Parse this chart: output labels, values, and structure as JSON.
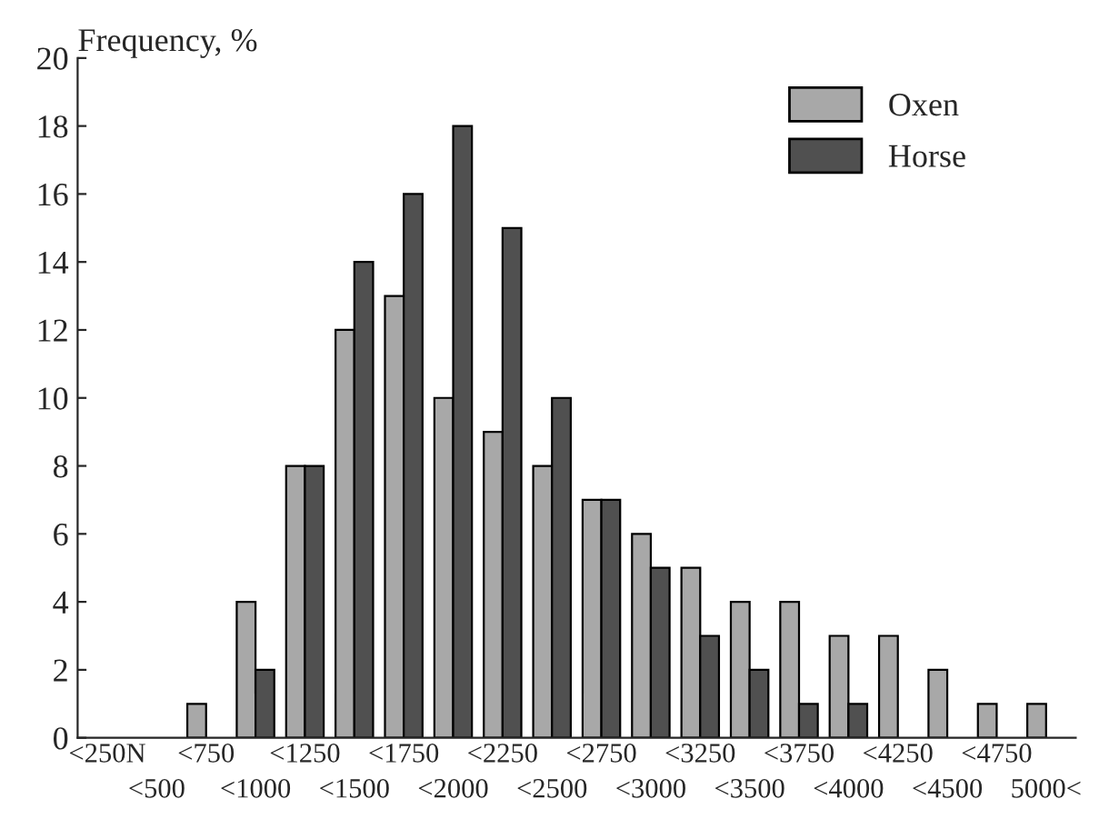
{
  "chart_data": {
    "type": "bar",
    "ylabel": "Frequency, %",
    "categories": [
      "<250N",
      "<500",
      "<750",
      "<1000",
      "<1250",
      "<1500",
      "<1750",
      "<2000",
      "<2250",
      "<2500",
      "<2750",
      "<3000",
      "<3250",
      "<3500",
      "<3750",
      "<4000",
      "<4250",
      "<4500",
      "<4750",
      "5000<"
    ],
    "series": [
      {
        "name": "Oxen",
        "color": "#a8a8a8",
        "values": [
          0,
          0,
          1,
          4,
          8,
          12,
          13,
          10,
          9,
          8,
          7,
          6,
          5,
          4,
          4,
          3,
          3,
          2,
          1,
          1
        ]
      },
      {
        "name": "Horse",
        "color": "#505050",
        "values": [
          0,
          0,
          0,
          2,
          8,
          14,
          16,
          18,
          15,
          10,
          7,
          5,
          3,
          2,
          1,
          1,
          0,
          0,
          0,
          0
        ]
      }
    ],
    "ylim": [
      0,
      20
    ],
    "yticks": [
      0,
      2,
      4,
      6,
      8,
      10,
      12,
      14,
      16,
      18,
      20
    ],
    "grid": false,
    "legend": "top right"
  }
}
